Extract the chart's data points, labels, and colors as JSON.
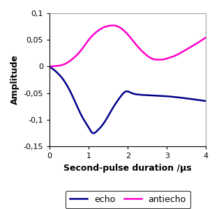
{
  "title": "",
  "xlabel": "Second-pulse duration /μs",
  "ylabel": "Amplitude",
  "xlim": [
    0,
    4
  ],
  "ylim": [
    -0.15,
    0.1
  ],
  "xticks": [
    0,
    1,
    2,
    3,
    4
  ],
  "yticks": [
    -0.15,
    -0.1,
    -0.05,
    0,
    0.05,
    0.1
  ],
  "ytick_labels": [
    "-0,15",
    "-0,1",
    "-0,05",
    "0",
    "0,05",
    "0,1"
  ],
  "xtick_labels": [
    "0",
    "1",
    "2",
    "3",
    "4"
  ],
  "echo_color": "#00008B",
  "antiecho_color": "#FF00CC",
  "legend_labels": [
    "echo",
    "antiecho"
  ],
  "background_color": "#ffffff",
  "line_width": 1.8,
  "echo_points_x": [
    0.0,
    0.2,
    0.4,
    0.6,
    0.8,
    1.0,
    1.1,
    1.2,
    1.4,
    1.6,
    1.8,
    1.95,
    2.1,
    2.3,
    2.5,
    2.8,
    3.0,
    3.5,
    4.0
  ],
  "echo_points_y": [
    0.0,
    -0.012,
    -0.03,
    -0.058,
    -0.09,
    -0.115,
    -0.125,
    -0.122,
    -0.105,
    -0.08,
    -0.058,
    -0.047,
    -0.05,
    -0.053,
    -0.054,
    -0.055,
    -0.056,
    -0.06,
    -0.065
  ],
  "antiecho_points_x": [
    0.0,
    0.2,
    0.4,
    0.6,
    0.8,
    1.0,
    1.2,
    1.4,
    1.6,
    1.65,
    1.8,
    2.0,
    2.2,
    2.5,
    2.7,
    2.8,
    2.9,
    3.0,
    3.2,
    3.5,
    3.8,
    4.0
  ],
  "antiecho_points_y": [
    0.0,
    0.001,
    0.005,
    0.015,
    0.03,
    0.05,
    0.065,
    0.074,
    0.077,
    0.077,
    0.073,
    0.06,
    0.042,
    0.02,
    0.013,
    0.013,
    0.013,
    0.015,
    0.02,
    0.032,
    0.045,
    0.055
  ]
}
